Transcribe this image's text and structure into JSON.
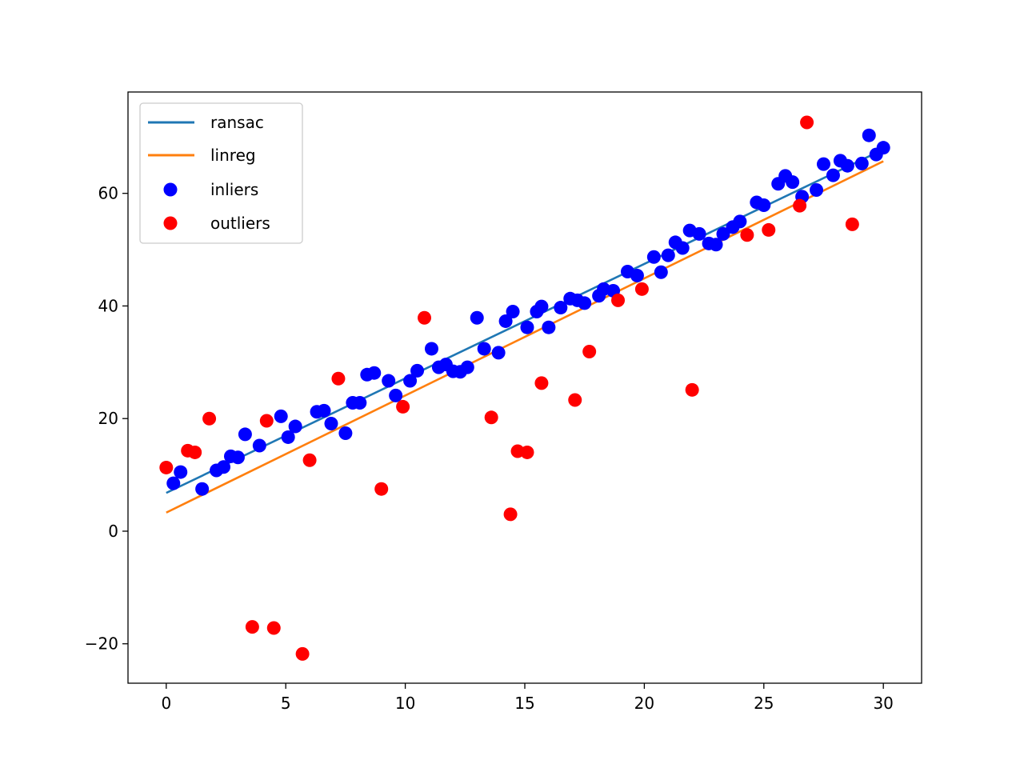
{
  "chart_data": {
    "type": "scatter",
    "title": "",
    "xlabel": "",
    "ylabel": "",
    "xlim": [
      -1.6,
      31.6
    ],
    "ylim": [
      -27,
      78
    ],
    "xticks": [
      0,
      5,
      10,
      15,
      20,
      25,
      30
    ],
    "yticks": [
      -20,
      0,
      20,
      40,
      60
    ],
    "xtick_labels": [
      "0",
      "5",
      "10",
      "15",
      "20",
      "25",
      "30"
    ],
    "ytick_labels": [
      "−20",
      "0",
      "20",
      "40",
      "60"
    ],
    "grid": false,
    "legend": {
      "location": "upper-left",
      "entries": [
        "ransac",
        "linreg",
        "inliers",
        "outliers"
      ]
    },
    "lines": [
      {
        "name": "ransac",
        "color": "#1f77b4",
        "x": [
          0,
          30
        ],
        "y": [
          6.8,
          67.8
        ]
      },
      {
        "name": "linreg",
        "color": "#ff7f0e",
        "x": [
          0,
          30
        ],
        "y": [
          3.3,
          65.7
        ]
      }
    ],
    "scatter": [
      {
        "name": "inliers",
        "color": "#0000ff",
        "points": [
          [
            0.3,
            8.5
          ],
          [
            0.6,
            10.5
          ],
          [
            1.5,
            7.5
          ],
          [
            2.1,
            10.8
          ],
          [
            2.4,
            11.4
          ],
          [
            2.7,
            13.3
          ],
          [
            3.0,
            13.1
          ],
          [
            3.3,
            17.2
          ],
          [
            3.9,
            15.2
          ],
          [
            4.8,
            20.4
          ],
          [
            5.1,
            16.7
          ],
          [
            5.4,
            18.6
          ],
          [
            6.3,
            21.2
          ],
          [
            6.6,
            21.4
          ],
          [
            6.9,
            19.1
          ],
          [
            7.5,
            17.4
          ],
          [
            7.8,
            22.8
          ],
          [
            8.1,
            22.8
          ],
          [
            8.4,
            27.8
          ],
          [
            8.7,
            28.1
          ],
          [
            9.3,
            26.7
          ],
          [
            9.6,
            24.1
          ],
          [
            10.2,
            26.7
          ],
          [
            10.5,
            28.5
          ],
          [
            11.1,
            32.4
          ],
          [
            11.4,
            29.1
          ],
          [
            11.7,
            29.6
          ],
          [
            12.0,
            28.4
          ],
          [
            12.3,
            28.3
          ],
          [
            12.6,
            29.1
          ],
          [
            13.0,
            37.9
          ],
          [
            13.3,
            32.4
          ],
          [
            13.9,
            31.7
          ],
          [
            14.2,
            37.3
          ],
          [
            14.5,
            39.0
          ],
          [
            15.1,
            36.2
          ],
          [
            15.5,
            39.0
          ],
          [
            15.7,
            39.9
          ],
          [
            16.0,
            36.2
          ],
          [
            16.5,
            39.7
          ],
          [
            16.9,
            41.3
          ],
          [
            17.2,
            41.0
          ],
          [
            17.5,
            40.5
          ],
          [
            18.1,
            41.8
          ],
          [
            18.3,
            43.0
          ],
          [
            18.7,
            42.7
          ],
          [
            19.3,
            46.1
          ],
          [
            19.7,
            45.4
          ],
          [
            20.4,
            48.7
          ],
          [
            20.7,
            46.0
          ],
          [
            21.0,
            49.0
          ],
          [
            21.3,
            51.3
          ],
          [
            21.6,
            50.3
          ],
          [
            21.9,
            53.4
          ],
          [
            22.3,
            52.8
          ],
          [
            22.7,
            51.1
          ],
          [
            23.0,
            50.9
          ],
          [
            23.3,
            52.8
          ],
          [
            23.7,
            54.0
          ],
          [
            24.0,
            55.0
          ],
          [
            24.7,
            58.4
          ],
          [
            25.0,
            57.9
          ],
          [
            25.6,
            61.7
          ],
          [
            25.9,
            63.1
          ],
          [
            26.2,
            62.0
          ],
          [
            26.6,
            59.4
          ],
          [
            27.2,
            60.6
          ],
          [
            27.5,
            65.2
          ],
          [
            27.9,
            63.2
          ],
          [
            28.2,
            65.8
          ],
          [
            28.5,
            64.9
          ],
          [
            29.1,
            65.3
          ],
          [
            29.4,
            70.3
          ],
          [
            29.7,
            66.9
          ],
          [
            30.0,
            68.1
          ]
        ]
      },
      {
        "name": "outliers",
        "color": "#ff0000",
        "points": [
          [
            0.0,
            11.3
          ],
          [
            0.9,
            14.3
          ],
          [
            1.2,
            14.0
          ],
          [
            1.8,
            20.0
          ],
          [
            3.6,
            -17.0
          ],
          [
            4.2,
            19.6
          ],
          [
            4.5,
            -17.2
          ],
          [
            5.7,
            -21.8
          ],
          [
            6.0,
            12.6
          ],
          [
            7.2,
            27.1
          ],
          [
            9.0,
            7.5
          ],
          [
            9.9,
            22.1
          ],
          [
            10.8,
            37.9
          ],
          [
            13.6,
            20.2
          ],
          [
            14.4,
            3.0
          ],
          [
            14.7,
            14.2
          ],
          [
            15.1,
            14.0
          ],
          [
            15.7,
            26.3
          ],
          [
            17.1,
            23.3
          ],
          [
            17.7,
            31.9
          ],
          [
            18.9,
            41.0
          ],
          [
            19.9,
            43.0
          ],
          [
            22.0,
            25.1
          ],
          [
            24.3,
            52.6
          ],
          [
            25.2,
            53.5
          ],
          [
            26.5,
            57.8
          ],
          [
            26.8,
            72.6
          ],
          [
            28.7,
            54.5
          ]
        ]
      }
    ]
  }
}
